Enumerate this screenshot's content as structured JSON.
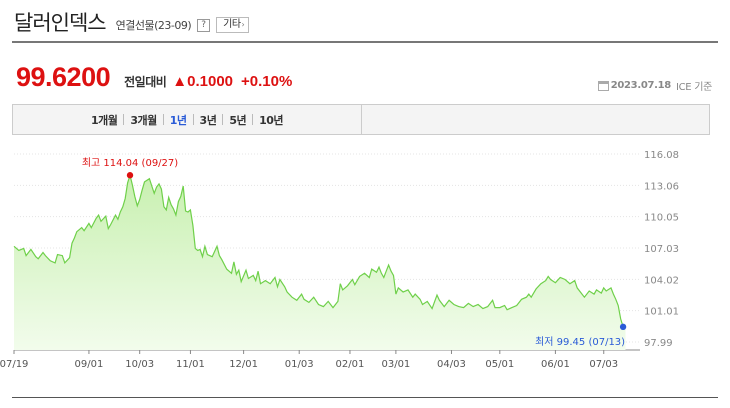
{
  "header": {
    "title": "달러인덱스",
    "subtitle": "연결선물(23-09)",
    "help_icon": "?",
    "more_label": "기타",
    "more_chevron": "›"
  },
  "quote": {
    "price": "99.6200",
    "change_label": "전일대비",
    "change_symbol": "▲",
    "change_value": "0.1000",
    "change_pct": "+0.10%",
    "asof_date": "2023.07.18",
    "asof_source": "ICE 기준",
    "up_color": "#dd1111"
  },
  "period_tabs": [
    {
      "label": "1개월",
      "active": false
    },
    {
      "label": "3개월",
      "active": false
    },
    {
      "label": "1년",
      "active": true
    },
    {
      "label": "3년",
      "active": false
    },
    {
      "label": "5년",
      "active": false
    },
    {
      "label": "10년",
      "active": false
    }
  ],
  "chart_data": {
    "type": "area",
    "y_ticks": [
      "116.08",
      "113.06",
      "110.05",
      "107.03",
      "104.02",
      "101.01",
      "97.99"
    ],
    "ylim": [
      97.99,
      116.08
    ],
    "x_tick_labels": [
      "07/19",
      "09/01",
      "10/03",
      "11/01",
      "12/01",
      "01/03",
      "02/01",
      "03/01",
      "04/03",
      "05/01",
      "06/01",
      "07/03"
    ],
    "x_tick_positions": [
      0,
      31,
      52,
      73,
      95,
      118,
      139,
      158,
      181,
      201,
      224,
      244
    ],
    "x_max": 259,
    "line_color": "#6fd04a",
    "fill_color": "#c8f0b0",
    "high": {
      "label": "최고 114.04 (09/27)",
      "index": 48,
      "value": 114.04,
      "color": "#dd1111"
    },
    "low": {
      "label": "최저 99.45 (07/13)",
      "index": 252,
      "value": 99.45,
      "color": "#2a5bd7"
    },
    "series": [
      {
        "values": [
          [
            0,
            107.2
          ],
          [
            2,
            106.8
          ],
          [
            4,
            107.0
          ],
          [
            5,
            106.3
          ],
          [
            7,
            106.9
          ],
          [
            9,
            106.2
          ],
          [
            10,
            106.0
          ],
          [
            12,
            106.6
          ],
          [
            13,
            106.3
          ],
          [
            15,
            105.8
          ],
          [
            17,
            105.6
          ],
          [
            18,
            106.4
          ],
          [
            20,
            106.3
          ],
          [
            21,
            105.6
          ],
          [
            23,
            106.1
          ],
          [
            24,
            107.5
          ],
          [
            25,
            108.0
          ],
          [
            26,
            108.6
          ],
          [
            28,
            109.0
          ],
          [
            29,
            108.7
          ],
          [
            31,
            109.4
          ],
          [
            32,
            109.0
          ],
          [
            34,
            109.9
          ],
          [
            35,
            110.2
          ],
          [
            36,
            109.6
          ],
          [
            38,
            110.1
          ],
          [
            39,
            108.9
          ],
          [
            40,
            109.3
          ],
          [
            42,
            110.2
          ],
          [
            43,
            109.8
          ],
          [
            44,
            110.5
          ],
          [
            45,
            111.0
          ],
          [
            46,
            111.8
          ],
          [
            47,
            113.3
          ],
          [
            48,
            114.04
          ],
          [
            49,
            113.1
          ],
          [
            50,
            112.0
          ],
          [
            51,
            111.1
          ],
          [
            52,
            111.7
          ],
          [
            53,
            112.6
          ],
          [
            54,
            113.4
          ],
          [
            56,
            113.7
          ],
          [
            57,
            113.0
          ],
          [
            58,
            112.3
          ],
          [
            59,
            112.9
          ],
          [
            60,
            113.2
          ],
          [
            61,
            112.7
          ],
          [
            62,
            111.0
          ],
          [
            63,
            110.7
          ],
          [
            64,
            111.9
          ],
          [
            65,
            111.2
          ],
          [
            66,
            110.8
          ],
          [
            67,
            110.2
          ],
          [
            68,
            111.5
          ],
          [
            69,
            112.0
          ],
          [
            70,
            113.0
          ],
          [
            71,
            110.6
          ],
          [
            72,
            110.5
          ],
          [
            73,
            110.7
          ],
          [
            74,
            109.2
          ],
          [
            75,
            107.0
          ],
          [
            76,
            106.8
          ],
          [
            77,
            106.9
          ],
          [
            78,
            106.2
          ],
          [
            79,
            107.2
          ],
          [
            80,
            106.4
          ],
          [
            82,
            106.2
          ],
          [
            84,
            107.2
          ],
          [
            85,
            106.3
          ],
          [
            86,
            105.9
          ],
          [
            88,
            105.0
          ],
          [
            90,
            104.6
          ],
          [
            91,
            105.7
          ],
          [
            92,
            104.5
          ],
          [
            93,
            104.9
          ],
          [
            94,
            103.8
          ],
          [
            96,
            104.9
          ],
          [
            97,
            104.1
          ],
          [
            99,
            104.4
          ],
          [
            100,
            103.9
          ],
          [
            101,
            104.8
          ],
          [
            102,
            103.6
          ],
          [
            104,
            103.9
          ],
          [
            106,
            103.6
          ],
          [
            108,
            104.2
          ],
          [
            109,
            103.3
          ],
          [
            110,
            104.0
          ],
          [
            112,
            103.3
          ],
          [
            113,
            102.8
          ],
          [
            115,
            102.3
          ],
          [
            117,
            102.0
          ],
          [
            119,
            102.6
          ],
          [
            120,
            102.1
          ],
          [
            122,
            101.8
          ],
          [
            124,
            102.3
          ],
          [
            126,
            101.6
          ],
          [
            128,
            101.4
          ],
          [
            130,
            101.9
          ],
          [
            132,
            101.3
          ],
          [
            134,
            101.9
          ],
          [
            135,
            103.6
          ],
          [
            136,
            103.0
          ],
          [
            138,
            103.4
          ],
          [
            140,
            104.0
          ],
          [
            141,
            103.5
          ],
          [
            143,
            104.3
          ],
          [
            145,
            104.6
          ],
          [
            147,
            104.2
          ],
          [
            148,
            105.0
          ],
          [
            150,
            104.7
          ],
          [
            151,
            105.2
          ],
          [
            152,
            104.6
          ],
          [
            153,
            104.2
          ],
          [
            154,
            104.8
          ],
          [
            155,
            105.4
          ],
          [
            156,
            104.8
          ],
          [
            157,
            104.4
          ],
          [
            158,
            102.6
          ],
          [
            159,
            103.2
          ],
          [
            161,
            102.8
          ],
          [
            163,
            103.0
          ],
          [
            165,
            102.3
          ],
          [
            166,
            102.6
          ],
          [
            168,
            102.1
          ],
          [
            169,
            101.6
          ],
          [
            171,
            101.9
          ],
          [
            173,
            101.2
          ],
          [
            175,
            102.5
          ],
          [
            176,
            102.0
          ],
          [
            178,
            101.4
          ],
          [
            180,
            102.0
          ],
          [
            182,
            101.6
          ],
          [
            184,
            101.4
          ],
          [
            186,
            101.3
          ],
          [
            188,
            101.7
          ],
          [
            190,
            101.4
          ],
          [
            192,
            101.6
          ],
          [
            194,
            101.2
          ],
          [
            196,
            101.4
          ],
          [
            198,
            102.0
          ],
          [
            199,
            101.3
          ],
          [
            201,
            101.3
          ],
          [
            203,
            101.5
          ],
          [
            204,
            101.1
          ],
          [
            206,
            101.3
          ],
          [
            208,
            101.5
          ],
          [
            210,
            102.1
          ],
          [
            212,
            102.3
          ],
          [
            213,
            102.6
          ],
          [
            214,
            102.3
          ],
          [
            216,
            103.1
          ],
          [
            218,
            103.6
          ],
          [
            220,
            103.9
          ],
          [
            221,
            104.3
          ],
          [
            222,
            104.0
          ],
          [
            224,
            103.7
          ],
          [
            226,
            104.2
          ],
          [
            228,
            104.0
          ],
          [
            230,
            103.6
          ],
          [
            232,
            103.9
          ],
          [
            233,
            103.2
          ],
          [
            235,
            102.6
          ],
          [
            236,
            102.3
          ],
          [
            238,
            102.9
          ],
          [
            240,
            102.6
          ],
          [
            241,
            103.0
          ],
          [
            243,
            102.7
          ],
          [
            244,
            103.2
          ],
          [
            245,
            102.9
          ],
          [
            247,
            103.2
          ],
          [
            248,
            102.6
          ],
          [
            249,
            102.1
          ],
          [
            250,
            101.5
          ],
          [
            251,
            100.2
          ],
          [
            252,
            99.45
          ],
          [
            253,
            99.62
          ]
        ]
      }
    ]
  }
}
